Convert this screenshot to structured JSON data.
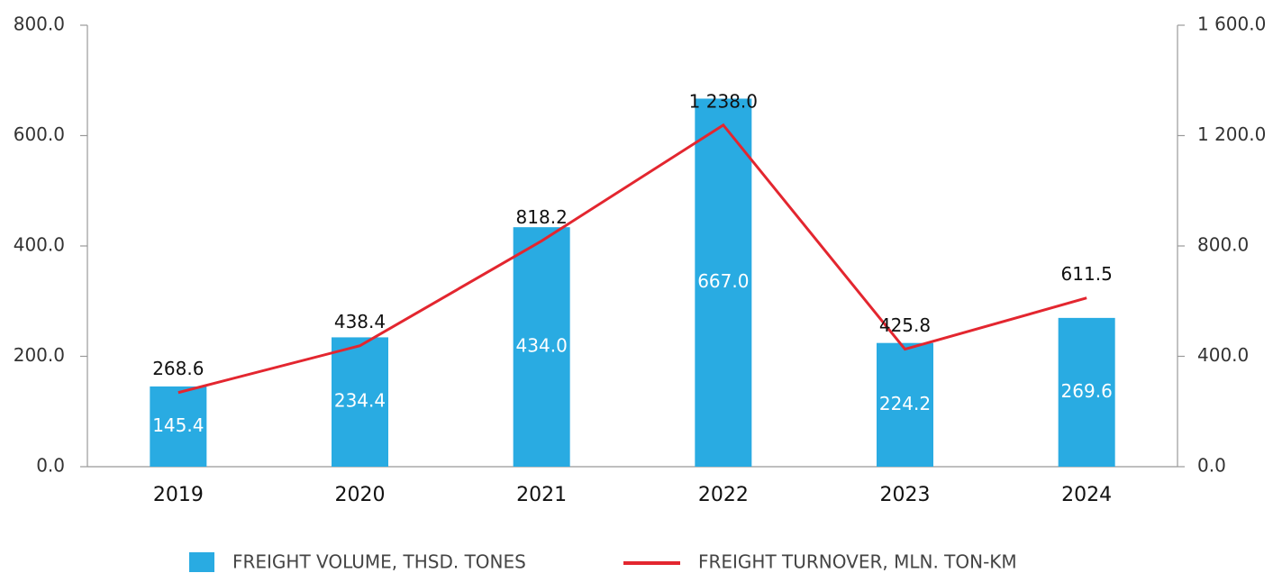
{
  "chart_data": {
    "type": "combo",
    "categories": [
      "2019",
      "2020",
      "2021",
      "2022",
      "2023",
      "2024"
    ],
    "series": [
      {
        "name": "FREIGHT VOLUME, THSD. TONES",
        "type": "bar",
        "color": "#29abe2",
        "values": [
          145.4,
          234.4,
          434.0,
          667.0,
          224.2,
          269.6
        ],
        "value_labels": [
          "145.4",
          "234.4",
          "434.0",
          "667.0",
          "224.2",
          "269.6"
        ]
      },
      {
        "name": "FREIGHT TURNOVER, MLN. TON-KM",
        "type": "line",
        "axis": "y2",
        "color": "#e3262f",
        "values": [
          268.6,
          438.4,
          818.2,
          1238.0,
          425.8,
          611.5
        ],
        "value_labels": [
          "268.6",
          "438.4",
          "818.2",
          "1 238.0",
          "425.8",
          "611.5"
        ]
      }
    ],
    "ylim": [
      0,
      800
    ],
    "yticks": [
      {
        "value": 0,
        "label": "0.0"
      },
      {
        "value": 200,
        "label": "200.0"
      },
      {
        "value": 400,
        "label": "400.0"
      },
      {
        "value": 600,
        "label": "600.0"
      },
      {
        "value": 800,
        "label": "800.0"
      }
    ],
    "y2lim": [
      0,
      1600
    ],
    "y2ticks": [
      {
        "value": 0,
        "label": "0.0"
      },
      {
        "value": 400,
        "label": "400.0"
      },
      {
        "value": 800,
        "label": "800.0"
      },
      {
        "value": 1200,
        "label": "1 200.0"
      },
      {
        "value": 1600,
        "label": "1 600.0"
      }
    ],
    "legend": "bottom"
  }
}
